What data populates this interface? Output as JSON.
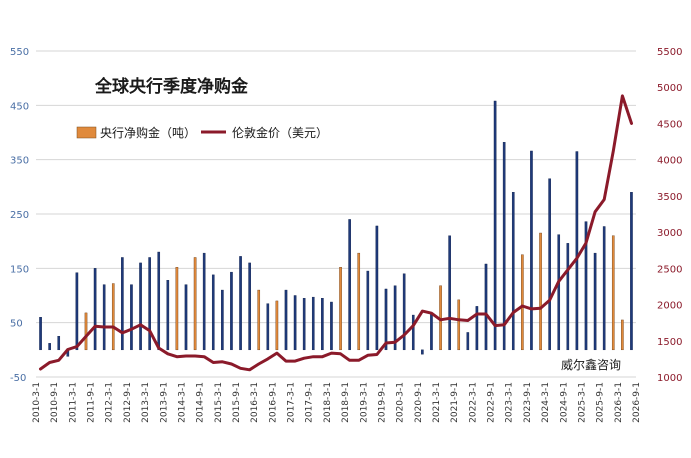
{
  "chart_data": {
    "type": "bar+line",
    "title": "全球央行季度净购金",
    "legend": {
      "bar": "央行净购金（吨）",
      "line": "伦敦金价（美元）",
      "placement": "top-left"
    },
    "watermark": "威尔鑫咨询",
    "left_axis": {
      "ylim": [
        -50,
        550
      ],
      "ticks": [
        -50,
        50,
        150,
        250,
        350,
        450,
        550
      ]
    },
    "right_axis": {
      "ylim": [
        1000,
        5500
      ],
      "ticks": [
        1000,
        1500,
        2000,
        2500,
        3000,
        3500,
        4000,
        4500,
        5000,
        5500
      ]
    },
    "x_tick_labels": [
      "2010-3-1",
      "2010-9-1",
      "2011-3-1",
      "2011-9-1",
      "2012-3-1",
      "2012-9-1",
      "2013-3-1",
      "2013-9-1",
      "2014-3-1",
      "2014-9-1",
      "2015-3-1",
      "2015-9-1",
      "2016-3-1",
      "2016-9-1",
      "2017-3-1",
      "2017-9-1",
      "2018-3-1",
      "2018-9-1",
      "2019-3-1",
      "2019-9-1",
      "2020-3-1",
      "2020-9-1",
      "2021-3-1",
      "2021-9-1",
      "2022-3-1",
      "2022-9-1",
      "2023-3-1",
      "2023-9-1",
      "2024-3-1",
      "2024-9-1",
      "2025-3-1",
      "2025-9-1",
      "2026-3-1",
      "2026-9-1"
    ],
    "bar_series": {
      "name": "央行净购金（吨）",
      "values": [
        60,
        12,
        25,
        -12,
        142,
        68,
        150,
        120,
        122,
        170,
        120,
        160,
        170,
        180,
        128,
        152,
        120,
        170,
        178,
        138,
        110,
        143,
        172,
        160,
        110,
        85,
        90,
        110,
        100,
        95,
        97,
        95,
        88,
        152,
        240,
        178,
        145,
        228,
        112,
        118,
        140,
        64,
        -8,
        65,
        118,
        210,
        92,
        32,
        80,
        158,
        458,
        382,
        290,
        175,
        366,
        215,
        315,
        212,
        196,
        365,
        236,
        178,
        227,
        210,
        55,
        290
      ],
      "orange_indices": [
        5,
        8,
        15,
        17,
        24,
        26,
        33,
        35,
        44,
        46,
        53,
        55,
        63,
        64
      ]
    },
    "line_series": {
      "name": "伦敦金价（美元）",
      "values": [
        1110,
        1200,
        1230,
        1380,
        1420,
        1560,
        1700,
        1690,
        1690,
        1610,
        1660,
        1720,
        1640,
        1400,
        1320,
        1280,
        1290,
        1290,
        1280,
        1200,
        1210,
        1180,
        1120,
        1100,
        1180,
        1250,
        1330,
        1220,
        1220,
        1260,
        1280,
        1280,
        1330,
        1320,
        1230,
        1230,
        1300,
        1310,
        1470,
        1480,
        1580,
        1710,
        1910,
        1880,
        1790,
        1810,
        1790,
        1780,
        1870,
        1870,
        1710,
        1720,
        1890,
        1980,
        1940,
        1950,
        2060,
        2320,
        2480,
        2640,
        2850,
        3280,
        3450,
        4120,
        4880,
        4500
      ]
    }
  }
}
